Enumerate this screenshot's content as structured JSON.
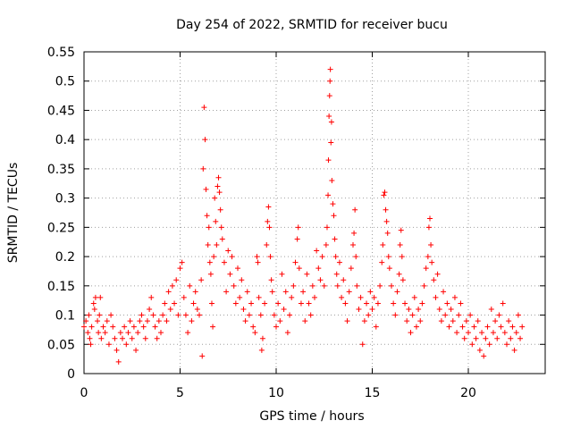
{
  "chart_data": {
    "type": "scatter",
    "title": "Day 254 of 2022, SRMTID for receiver bucu",
    "xlabel": "GPS time / hours",
    "ylabel": "SRMTID / TECUs",
    "xlim": [
      0,
      24
    ],
    "ylim": [
      0,
      0.55
    ],
    "xticks": [
      0,
      5,
      10,
      15,
      20
    ],
    "xtick_labels": [
      "0",
      "5",
      "10",
      "15",
      "20"
    ],
    "yticks": [
      0,
      0.05,
      0.1,
      0.15,
      0.2,
      0.25,
      0.3,
      0.35,
      0.4,
      0.45,
      0.5,
      0.55
    ],
    "ytick_labels": [
      "0",
      "0.05",
      "0.1",
      "0.15",
      "0.2",
      "0.25",
      "0.3",
      "0.35",
      "0.4",
      "0.45",
      "0.5",
      "0.55"
    ],
    "grid": true,
    "marker": "+",
    "series": [
      {
        "name": "SRMTID",
        "color": "#ff0000",
        "points": [
          [
            0.0,
            0.08
          ],
          [
            0.1,
            0.09
          ],
          [
            0.2,
            0.07
          ],
          [
            0.25,
            0.1
          ],
          [
            0.3,
            0.06
          ],
          [
            0.35,
            0.05
          ],
          [
            0.4,
            0.08
          ],
          [
            0.5,
            0.12
          ],
          [
            0.55,
            0.11
          ],
          [
            0.6,
            0.13
          ],
          [
            0.7,
            0.09
          ],
          [
            0.75,
            0.07
          ],
          [
            0.8,
            0.1
          ],
          [
            0.85,
            0.13
          ],
          [
            0.9,
            0.06
          ],
          [
            1.0,
            0.08
          ],
          [
            1.1,
            0.07
          ],
          [
            1.2,
            0.09
          ],
          [
            1.3,
            0.05
          ],
          [
            1.4,
            0.1
          ],
          [
            1.5,
            0.08
          ],
          [
            1.6,
            0.06
          ],
          [
            1.7,
            0.04
          ],
          [
            1.8,
            0.02
          ],
          [
            1.9,
            0.07
          ],
          [
            2.0,
            0.06
          ],
          [
            2.1,
            0.08
          ],
          [
            2.2,
            0.05
          ],
          [
            2.3,
            0.07
          ],
          [
            2.4,
            0.09
          ],
          [
            2.5,
            0.06
          ],
          [
            2.6,
            0.08
          ],
          [
            2.7,
            0.04
          ],
          [
            2.8,
            0.07
          ],
          [
            2.9,
            0.09
          ],
          [
            3.0,
            0.1
          ],
          [
            3.1,
            0.08
          ],
          [
            3.2,
            0.06
          ],
          [
            3.3,
            0.09
          ],
          [
            3.4,
            0.11
          ],
          [
            3.5,
            0.13
          ],
          [
            3.6,
            0.1
          ],
          [
            3.7,
            0.08
          ],
          [
            3.8,
            0.06
          ],
          [
            3.9,
            0.09
          ],
          [
            4.0,
            0.07
          ],
          [
            4.1,
            0.1
          ],
          [
            4.2,
            0.12
          ],
          [
            4.3,
            0.09
          ],
          [
            4.4,
            0.14
          ],
          [
            4.5,
            0.11
          ],
          [
            4.6,
            0.15
          ],
          [
            4.7,
            0.12
          ],
          [
            4.8,
            0.16
          ],
          [
            4.9,
            0.1
          ],
          [
            5.0,
            0.18
          ],
          [
            5.1,
            0.19
          ],
          [
            5.2,
            0.13
          ],
          [
            5.3,
            0.1
          ],
          [
            5.4,
            0.07
          ],
          [
            5.5,
            0.15
          ],
          [
            5.6,
            0.09
          ],
          [
            5.7,
            0.12
          ],
          [
            5.8,
            0.14
          ],
          [
            5.9,
            0.11
          ],
          [
            6.0,
            0.1
          ],
          [
            6.1,
            0.16
          ],
          [
            6.15,
            0.03
          ],
          [
            6.2,
            0.35
          ],
          [
            6.25,
            0.455
          ],
          [
            6.3,
            0.4
          ],
          [
            6.35,
            0.315
          ],
          [
            6.4,
            0.27
          ],
          [
            6.45,
            0.22
          ],
          [
            6.5,
            0.25
          ],
          [
            6.55,
            0.19
          ],
          [
            6.6,
            0.17
          ],
          [
            6.65,
            0.12
          ],
          [
            6.7,
            0.08
          ],
          [
            6.75,
            0.2
          ],
          [
            6.8,
            0.3
          ],
          [
            6.85,
            0.26
          ],
          [
            6.9,
            0.22
          ],
          [
            6.95,
            0.32
          ],
          [
            7.0,
            0.335
          ],
          [
            7.05,
            0.31
          ],
          [
            7.1,
            0.28
          ],
          [
            7.15,
            0.25
          ],
          [
            7.2,
            0.23
          ],
          [
            7.3,
            0.19
          ],
          [
            7.4,
            0.14
          ],
          [
            7.5,
            0.21
          ],
          [
            7.6,
            0.17
          ],
          [
            7.7,
            0.2
          ],
          [
            7.8,
            0.15
          ],
          [
            7.9,
            0.12
          ],
          [
            8.0,
            0.18
          ],
          [
            8.1,
            0.13
          ],
          [
            8.2,
            0.16
          ],
          [
            8.3,
            0.11
          ],
          [
            8.4,
            0.09
          ],
          [
            8.5,
            0.14
          ],
          [
            8.6,
            0.1
          ],
          [
            8.7,
            0.12
          ],
          [
            8.8,
            0.08
          ],
          [
            8.9,
            0.07
          ],
          [
            9.0,
            0.2
          ],
          [
            9.05,
            0.19
          ],
          [
            9.1,
            0.13
          ],
          [
            9.2,
            0.1
          ],
          [
            9.25,
            0.04
          ],
          [
            9.3,
            0.06
          ],
          [
            9.4,
            0.12
          ],
          [
            9.5,
            0.22
          ],
          [
            9.55,
            0.26
          ],
          [
            9.6,
            0.285
          ],
          [
            9.65,
            0.25
          ],
          [
            9.7,
            0.2
          ],
          [
            9.75,
            0.16
          ],
          [
            9.8,
            0.14
          ],
          [
            9.9,
            0.1
          ],
          [
            10.0,
            0.08
          ],
          [
            10.1,
            0.12
          ],
          [
            10.2,
            0.09
          ],
          [
            10.3,
            0.17
          ],
          [
            10.4,
            0.11
          ],
          [
            10.5,
            0.14
          ],
          [
            10.6,
            0.07
          ],
          [
            10.7,
            0.1
          ],
          [
            10.8,
            0.13
          ],
          [
            10.9,
            0.15
          ],
          [
            11.0,
            0.19
          ],
          [
            11.1,
            0.23
          ],
          [
            11.15,
            0.25
          ],
          [
            11.2,
            0.18
          ],
          [
            11.3,
            0.12
          ],
          [
            11.4,
            0.14
          ],
          [
            11.5,
            0.09
          ],
          [
            11.6,
            0.17
          ],
          [
            11.7,
            0.12
          ],
          [
            11.8,
            0.1
          ],
          [
            11.9,
            0.15
          ],
          [
            12.0,
            0.13
          ],
          [
            12.1,
            0.21
          ],
          [
            12.2,
            0.18
          ],
          [
            12.3,
            0.16
          ],
          [
            12.4,
            0.2
          ],
          [
            12.5,
            0.15
          ],
          [
            12.6,
            0.22
          ],
          [
            12.65,
            0.25
          ],
          [
            12.7,
            0.305
          ],
          [
            12.72,
            0.365
          ],
          [
            12.75,
            0.44
          ],
          [
            12.78,
            0.475
          ],
          [
            12.8,
            0.5
          ],
          [
            12.82,
            0.52
          ],
          [
            12.85,
            0.395
          ],
          [
            12.88,
            0.43
          ],
          [
            12.9,
            0.33
          ],
          [
            12.95,
            0.29
          ],
          [
            13.0,
            0.27
          ],
          [
            13.05,
            0.23
          ],
          [
            13.1,
            0.2
          ],
          [
            13.15,
            0.17
          ],
          [
            13.2,
            0.15
          ],
          [
            13.3,
            0.19
          ],
          [
            13.4,
            0.13
          ],
          [
            13.5,
            0.16
          ],
          [
            13.6,
            0.12
          ],
          [
            13.7,
            0.09
          ],
          [
            13.8,
            0.14
          ],
          [
            13.9,
            0.18
          ],
          [
            14.0,
            0.22
          ],
          [
            14.05,
            0.24
          ],
          [
            14.1,
            0.28
          ],
          [
            14.15,
            0.2
          ],
          [
            14.2,
            0.15
          ],
          [
            14.3,
            0.11
          ],
          [
            14.4,
            0.13
          ],
          [
            14.5,
            0.05
          ],
          [
            14.6,
            0.09
          ],
          [
            14.7,
            0.12
          ],
          [
            14.8,
            0.1
          ],
          [
            14.9,
            0.14
          ],
          [
            15.0,
            0.11
          ],
          [
            15.1,
            0.13
          ],
          [
            15.2,
            0.08
          ],
          [
            15.3,
            0.12
          ],
          [
            15.4,
            0.15
          ],
          [
            15.5,
            0.19
          ],
          [
            15.55,
            0.22
          ],
          [
            15.6,
            0.305
          ],
          [
            15.65,
            0.31
          ],
          [
            15.7,
            0.28
          ],
          [
            15.75,
            0.26
          ],
          [
            15.8,
            0.24
          ],
          [
            15.85,
            0.2
          ],
          [
            15.9,
            0.18
          ],
          [
            16.0,
            0.15
          ],
          [
            16.1,
            0.12
          ],
          [
            16.2,
            0.1
          ],
          [
            16.3,
            0.14
          ],
          [
            16.4,
            0.17
          ],
          [
            16.45,
            0.22
          ],
          [
            16.5,
            0.245
          ],
          [
            16.55,
            0.2
          ],
          [
            16.6,
            0.16
          ],
          [
            16.7,
            0.12
          ],
          [
            16.8,
            0.09
          ],
          [
            16.9,
            0.11
          ],
          [
            17.0,
            0.07
          ],
          [
            17.1,
            0.1
          ],
          [
            17.2,
            0.13
          ],
          [
            17.3,
            0.08
          ],
          [
            17.4,
            0.11
          ],
          [
            17.5,
            0.09
          ],
          [
            17.6,
            0.12
          ],
          [
            17.7,
            0.15
          ],
          [
            17.8,
            0.18
          ],
          [
            17.9,
            0.2
          ],
          [
            17.95,
            0.25
          ],
          [
            18.0,
            0.265
          ],
          [
            18.05,
            0.22
          ],
          [
            18.1,
            0.19
          ],
          [
            18.2,
            0.16
          ],
          [
            18.3,
            0.13
          ],
          [
            18.4,
            0.17
          ],
          [
            18.5,
            0.11
          ],
          [
            18.6,
            0.09
          ],
          [
            18.7,
            0.14
          ],
          [
            18.8,
            0.1
          ],
          [
            18.9,
            0.12
          ],
          [
            19.0,
            0.08
          ],
          [
            19.1,
            0.11
          ],
          [
            19.2,
            0.09
          ],
          [
            19.3,
            0.13
          ],
          [
            19.4,
            0.07
          ],
          [
            19.5,
            0.1
          ],
          [
            19.6,
            0.12
          ],
          [
            19.7,
            0.08
          ],
          [
            19.8,
            0.06
          ],
          [
            19.9,
            0.09
          ],
          [
            20.0,
            0.07
          ],
          [
            20.1,
            0.1
          ],
          [
            20.2,
            0.05
          ],
          [
            20.3,
            0.08
          ],
          [
            20.4,
            0.06
          ],
          [
            20.5,
            0.09
          ],
          [
            20.6,
            0.04
          ],
          [
            20.7,
            0.07
          ],
          [
            20.8,
            0.03
          ],
          [
            20.9,
            0.06
          ],
          [
            21.0,
            0.08
          ],
          [
            21.1,
            0.05
          ],
          [
            21.2,
            0.11
          ],
          [
            21.3,
            0.07
          ],
          [
            21.4,
            0.09
          ],
          [
            21.5,
            0.06
          ],
          [
            21.6,
            0.1
          ],
          [
            21.7,
            0.08
          ],
          [
            21.8,
            0.12
          ],
          [
            21.9,
            0.07
          ],
          [
            22.0,
            0.05
          ],
          [
            22.1,
            0.09
          ],
          [
            22.2,
            0.06
          ],
          [
            22.3,
            0.08
          ],
          [
            22.4,
            0.04
          ],
          [
            22.5,
            0.07
          ],
          [
            22.6,
            0.1
          ],
          [
            22.7,
            0.06
          ],
          [
            22.8,
            0.08
          ]
        ]
      }
    ]
  }
}
